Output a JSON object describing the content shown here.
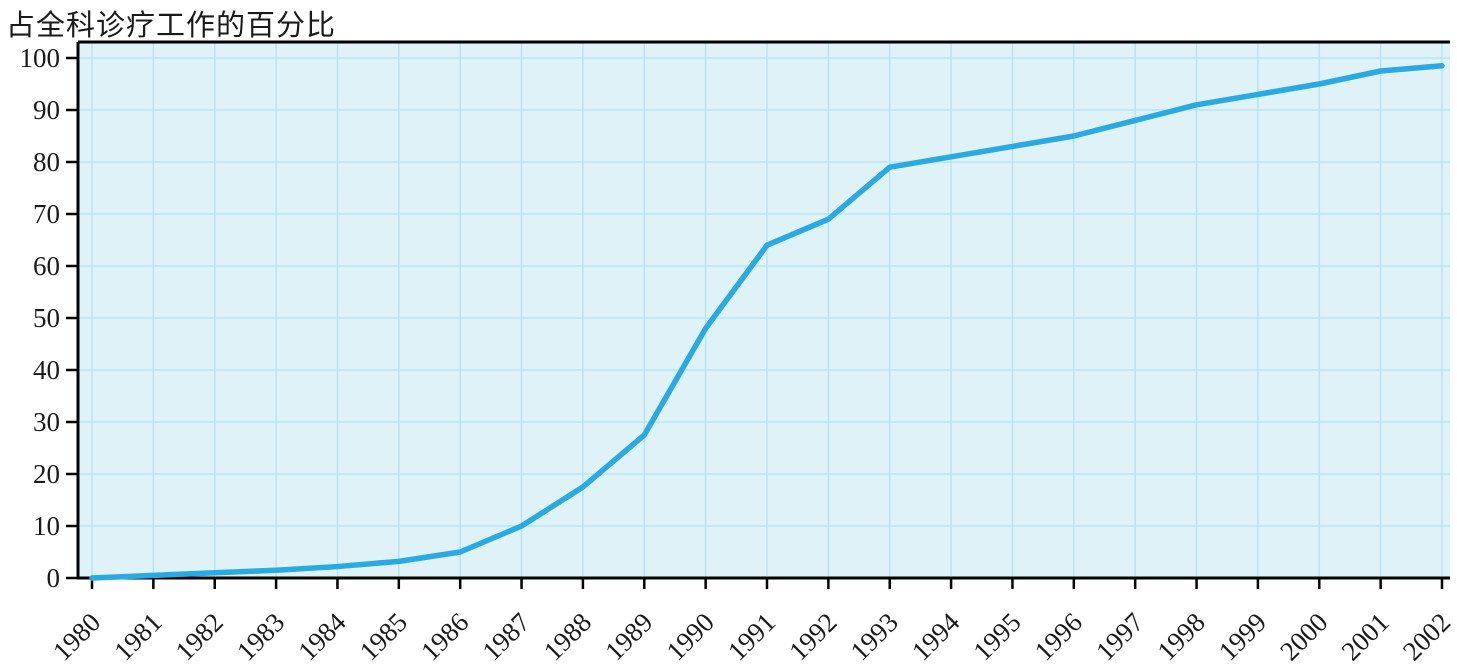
{
  "chart_data": {
    "type": "line",
    "title": "占全科诊疗工作的百分比",
    "xlabel": "",
    "ylabel": "占全科诊疗工作的百分比",
    "x": [
      1980,
      1981,
      1982,
      1983,
      1984,
      1985,
      1986,
      1987,
      1988,
      1989,
      1990,
      1991,
      1992,
      1993,
      1994,
      1995,
      1996,
      1997,
      1998,
      1999,
      2000,
      2001,
      2002
    ],
    "series": [
      {
        "name": "占全科诊疗工作的百分比",
        "values": [
          0,
          0.5,
          1,
          1.5,
          2.2,
          3.2,
          5,
          10,
          17.5,
          27.5,
          48,
          64,
          69,
          79,
          81,
          83,
          85,
          88,
          91,
          93,
          95,
          97.5,
          98.5
        ]
      }
    ],
    "ylim": [
      0,
      100
    ],
    "yticks": [
      0,
      10,
      20,
      30,
      40,
      50,
      60,
      70,
      80,
      90,
      100
    ],
    "grid": true,
    "legend": "none",
    "line_color": "#29aae2",
    "plot_bg": "#def2f8",
    "grid_color": "#b7e5f2",
    "axis_color": "#000000",
    "label_color": "#1a1a1a"
  }
}
